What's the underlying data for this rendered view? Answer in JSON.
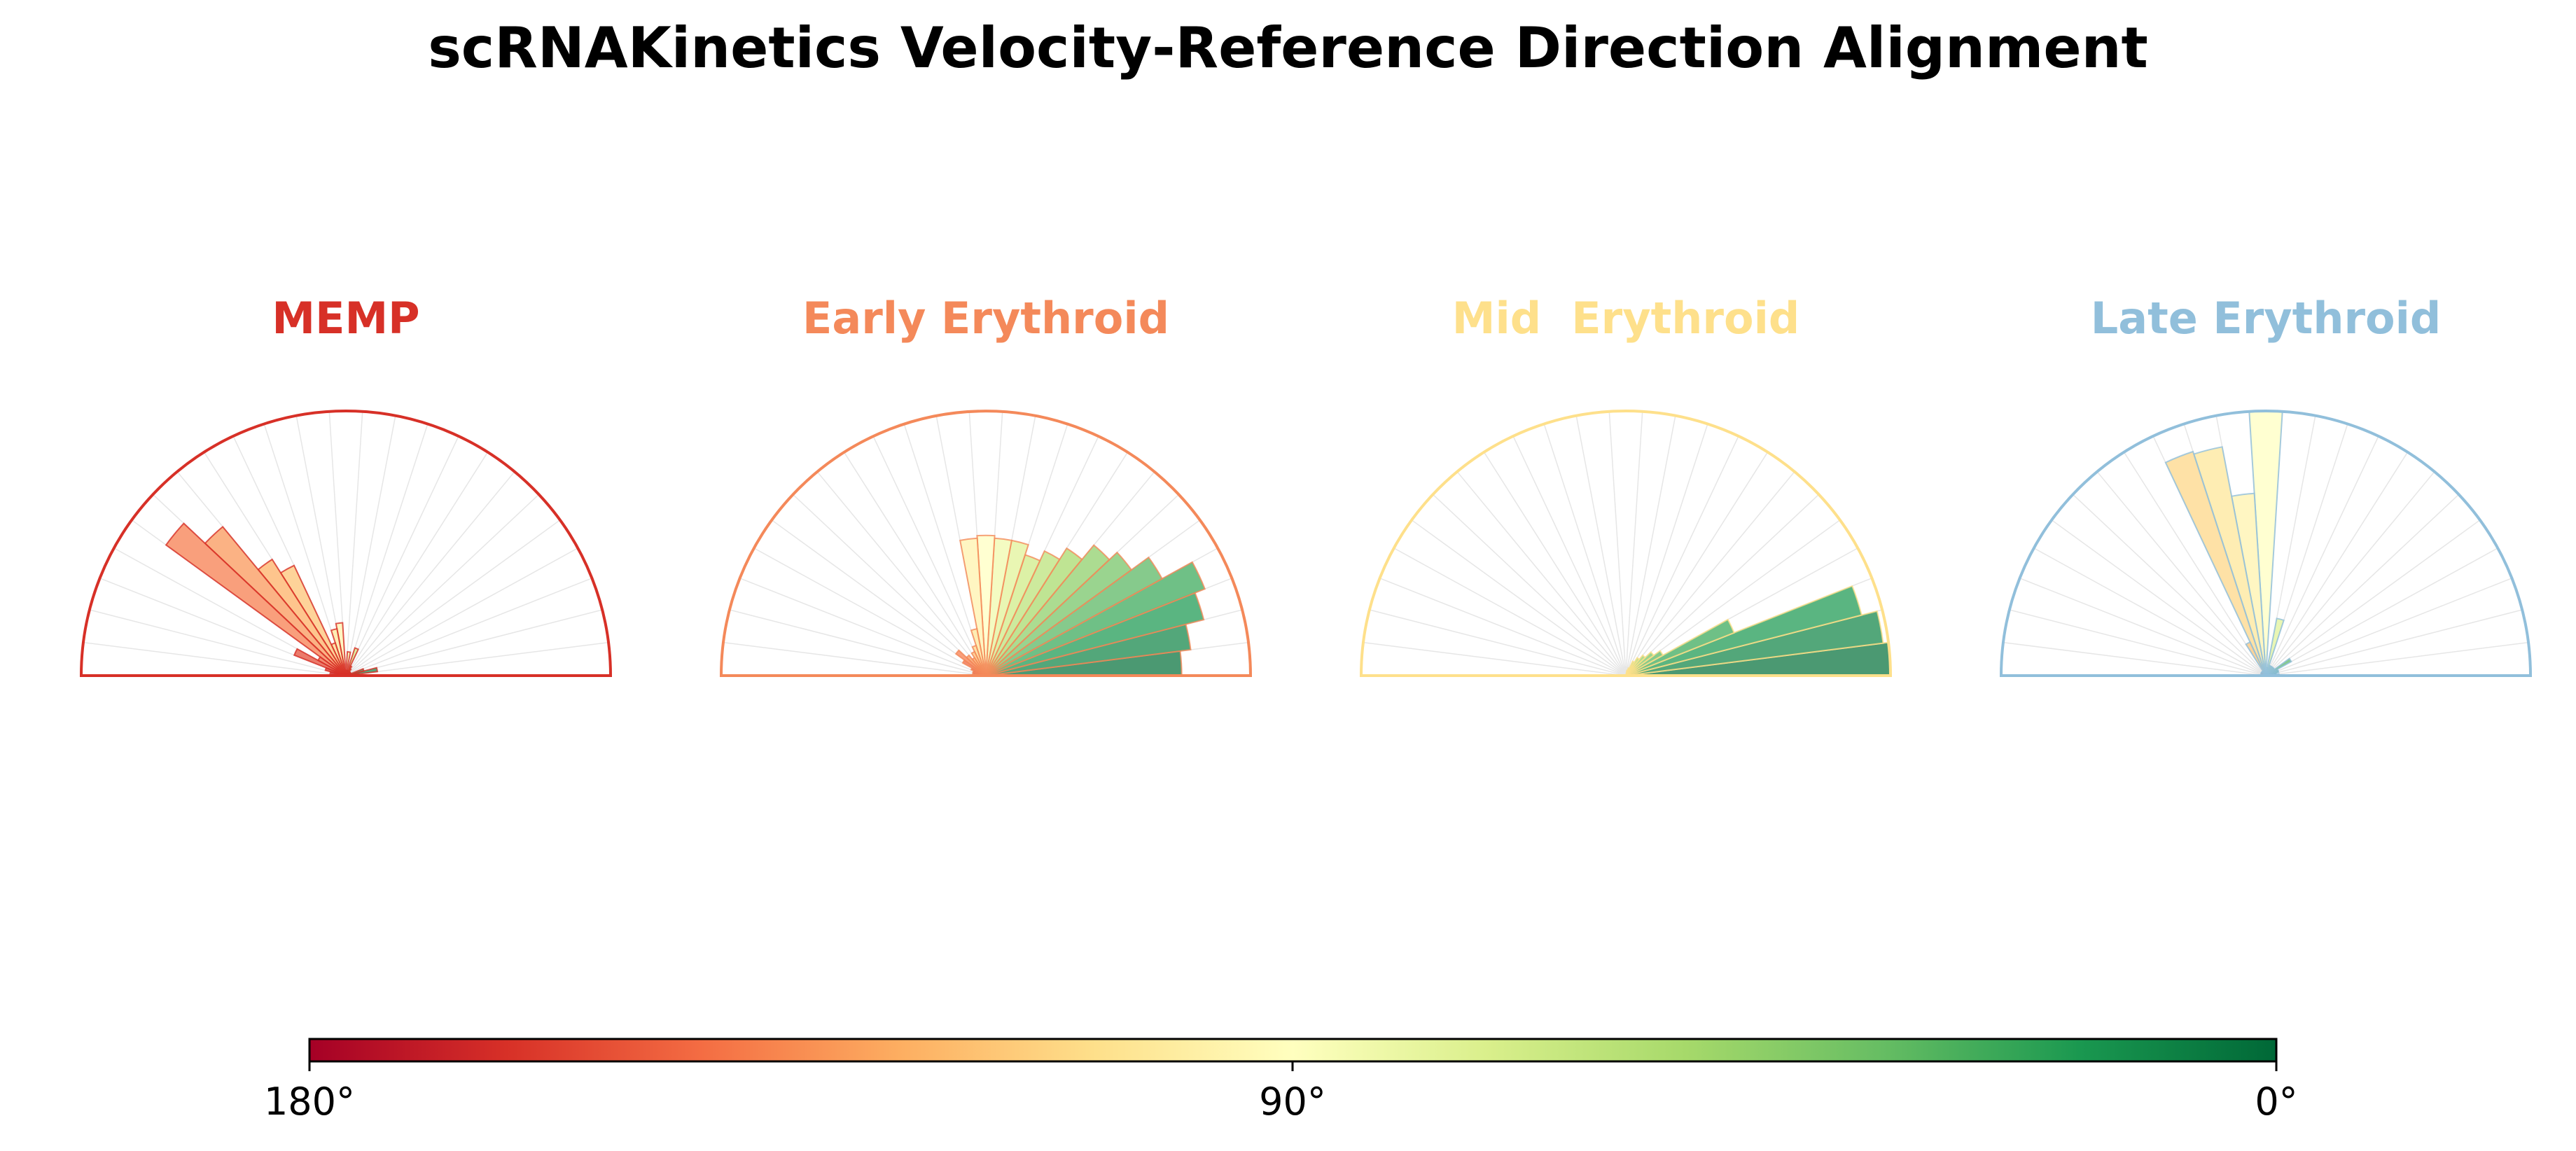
{
  "figure": {
    "title": "scRNAKinetics Velocity-Reference Direction Alignment"
  },
  "colorbar": {
    "colormap": "RdYlGn",
    "left_label": "180°",
    "mid_label": "90°",
    "right_label": "0°"
  },
  "chart_data": [
    {
      "type": "polar-bar (half rose)",
      "title": "MEMP",
      "title_color": "#d73027",
      "edge_color": "#d73027",
      "angle_range_deg": [
        0,
        180
      ],
      "bin_width_deg": 7.2,
      "bin_centers_deg": [
        3.6,
        10.8,
        18,
        25.2,
        32.4,
        39.6,
        46.8,
        54,
        61.2,
        68.4,
        75.6,
        82.8,
        90,
        97.2,
        104.4,
        111.6,
        118.8,
        126,
        133.2,
        140.4,
        147.6,
        154.8,
        162,
        169.2,
        176.4
      ],
      "values": [
        0.05,
        0.12,
        0.07,
        0.02,
        0.02,
        0.02,
        0.02,
        0.03,
        0.04,
        0.11,
        0.02,
        0.09,
        0.02,
        0.2,
        0.18,
        0.13,
        0.46,
        0.52,
        0.73,
        0.84,
        0.12,
        0.21,
        0.08,
        0.06,
        0.02
      ]
    },
    {
      "type": "polar-bar (half rose)",
      "title": "Early Erythroid",
      "title_color": "#f4895a",
      "edge_color": "#f4895a",
      "angle_range_deg": [
        0,
        180
      ],
      "bin_width_deg": 7.2,
      "bin_centers_deg": [
        3.6,
        10.8,
        18,
        25.2,
        32.4,
        39.6,
        46.8,
        54,
        61.2,
        68.4,
        75.6,
        82.8,
        90,
        97.2,
        104.4,
        111.6,
        118.8,
        126,
        133.2,
        140.4,
        147.6,
        154.8,
        162,
        169.2,
        176.4
      ],
      "values": [
        0.74,
        0.78,
        0.85,
        0.89,
        0.76,
        0.68,
        0.64,
        0.57,
        0.52,
        0.48,
        0.52,
        0.52,
        0.53,
        0.52,
        0.18,
        0.12,
        0.1,
        0.08,
        0.1,
        0.14,
        0.1,
        0.06,
        0.05,
        0.05,
        0.04
      ]
    },
    {
      "type": "polar-bar (half rose)",
      "title": "Mid  Erythroid",
      "title_color": "#fee08b",
      "edge_color": "#fee08b",
      "angle_range_deg": [
        0,
        180
      ],
      "bin_width_deg": 7.2,
      "bin_centers_deg": [
        3.6,
        10.8,
        18,
        25.2,
        32.4,
        39.6,
        46.8,
        54,
        61.2,
        68.4,
        75.6,
        82.8,
        90,
        97.2,
        104.4,
        111.6,
        118.8,
        126,
        133.2,
        140.4,
        147.6,
        154.8,
        162,
        169.2,
        176.4
      ],
      "values": [
        1.0,
        0.98,
        0.92,
        0.44,
        0.16,
        0.13,
        0.1,
        0.08,
        0.06,
        0.03,
        0.02,
        0,
        0,
        0,
        0,
        0,
        0,
        0,
        0,
        0,
        0,
        0,
        0,
        0,
        0
      ]
    },
    {
      "type": "polar-bar (half rose)",
      "title": "Late Erythroid",
      "title_color": "#91bfdb",
      "edge_color": "#91bfdb",
      "angle_range_deg": [
        0,
        180
      ],
      "bin_width_deg": 7.2,
      "bin_centers_deg": [
        3.6,
        10.8,
        18,
        25.2,
        32.4,
        39.6,
        46.8,
        54,
        61.2,
        68.4,
        75.6,
        82.8,
        90,
        97.2,
        104.4,
        111.6,
        118.8,
        126,
        133.2,
        140.4,
        147.6,
        154.8,
        162,
        169.2,
        176.4
      ],
      "values": [
        0.05,
        0.04,
        0.05,
        0.05,
        0.11,
        0.04,
        0.04,
        0.04,
        0.04,
        0.04,
        0.22,
        0.03,
        1.0,
        0.69,
        0.88,
        0.89,
        0.14,
        0.02,
        0.02,
        0.02,
        0.02,
        0.02,
        0.01,
        0.01,
        0.01
      ]
    }
  ]
}
